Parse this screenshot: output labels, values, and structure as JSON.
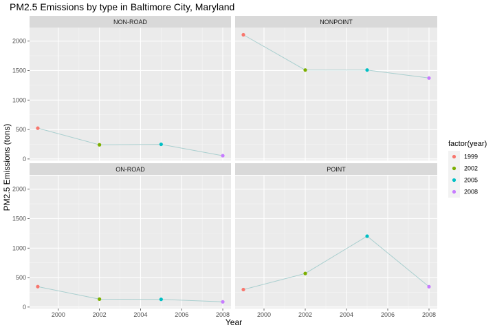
{
  "chart_data": {
    "type": "line",
    "title": "PM2.5 Emissions by type in Baltimore City, Maryland",
    "xlabel": "Year",
    "ylabel": "PM2.5 Emissions (tons)",
    "x_ticks": [
      2000,
      2002,
      2004,
      2006,
      2008
    ],
    "y_ticks": [
      0,
      500,
      1000,
      1500,
      2000
    ],
    "xlim": [
      1998.6,
      2008.4
    ],
    "ylim": [
      -25,
      2230
    ],
    "grid": true,
    "line_color": "#a9cfcf",
    "panel_bg": "#ebebeb",
    "strip_bg": "#d9d9d9",
    "legend": {
      "title": "factor(year)",
      "position": "right",
      "entries": [
        {
          "label": "1999",
          "color": "#F8766D"
        },
        {
          "label": "2002",
          "color": "#7CAE00"
        },
        {
          "label": "2005",
          "color": "#00BFC4"
        },
        {
          "label": "2008",
          "color": "#C77CFF"
        }
      ]
    },
    "panels": [
      {
        "name": "NON-ROAD",
        "x": [
          1999,
          2002,
          2005,
          2008
        ],
        "y": [
          522.9,
          240.8,
          248.9,
          55.8
        ]
      },
      {
        "name": "NONPOINT",
        "x": [
          1999,
          2002,
          2005,
          2008
        ],
        "y": [
          2107.6,
          1509.5,
          1509.5,
          1373.2
        ]
      },
      {
        "name": "ON-ROAD",
        "x": [
          1999,
          2002,
          2005,
          2008
        ],
        "y": [
          346.8,
          134.3,
          130.4,
          88.3
        ]
      },
      {
        "name": "POINT",
        "x": [
          1999,
          2002,
          2005,
          2008
        ],
        "y": [
          296.8,
          569.3,
          1202.5,
          345.0
        ]
      }
    ]
  }
}
